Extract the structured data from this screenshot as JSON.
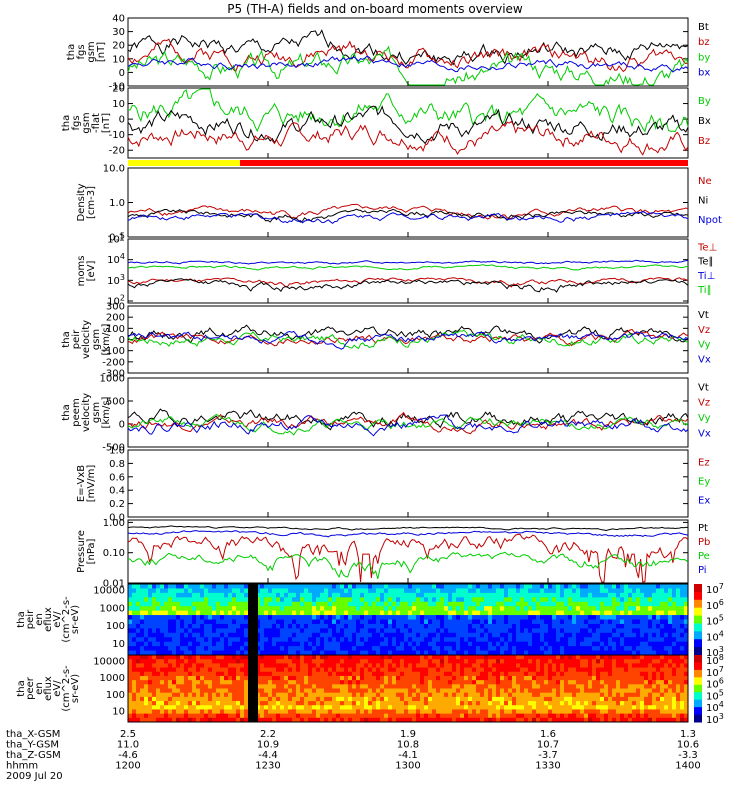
{
  "chart_data": {
    "type": "line",
    "title": "P5 (TH-A) fields and on-board moments overview",
    "colors": {
      "black": "#000000",
      "red": "#c00000",
      "green": "#00cc00",
      "blue": "#0000dd"
    },
    "panels": [
      {
        "key": "fgs_gsm",
        "ylabel": [
          "tha",
          "fgs",
          "gsm",
          "[nT]"
        ],
        "scale": "linear",
        "ylim": [
          -10,
          40
        ],
        "ticks": [
          "40",
          "30",
          "20",
          "10",
          "0",
          "-10"
        ],
        "tick_values": [
          40,
          30,
          20,
          10,
          0,
          -10
        ],
        "series": [
          {
            "name": "Bt",
            "color": "#000000",
            "base": 16,
            "amp": 7,
            "noise": 4,
            "seed": 1
          },
          {
            "name": "bz",
            "color": "#c00000",
            "base": 12,
            "amp": 6,
            "noise": 4,
            "seed": 2
          },
          {
            "name": "by",
            "color": "#00cc00",
            "base": 3,
            "amp": 5,
            "noise": 5,
            "seed": 3
          },
          {
            "name": "bx",
            "color": "#0000dd",
            "base": 6,
            "amp": 3,
            "noise": 2,
            "seed": 4
          }
        ]
      },
      {
        "key": "fgs_gsm_flat",
        "ylabel": [
          "tha",
          "fgs",
          "gsm",
          "-flat",
          "[nT]"
        ],
        "scale": "linear",
        "ylim": [
          -25,
          20
        ],
        "ticks": [
          "20",
          "10",
          "0",
          "-10",
          "-20"
        ],
        "tick_values": [
          20,
          10,
          0,
          -10,
          -20
        ],
        "series": [
          {
            "name": "By",
            "color": "#00cc00",
            "base": 2,
            "amp": 7,
            "noise": 5,
            "seed": 5
          },
          {
            "name": "Bx",
            "color": "#000000",
            "base": -4,
            "amp": 4,
            "noise": 4,
            "seed": 6
          },
          {
            "name": "Bz",
            "color": "#c00000",
            "base": -12,
            "amp": 5,
            "noise": 4,
            "seed": 7
          }
        ]
      },
      {
        "key": "density",
        "ylabel": [
          "Density",
          "[cm-3]"
        ],
        "scale": "log",
        "ylim": [
          0.1,
          10
        ],
        "ticks": [
          "10.0",
          "1.0",
          "0.1"
        ],
        "tick_values": [
          10,
          1,
          0.1
        ],
        "series": [
          {
            "name": "Ne",
            "color": "#c00000",
            "base": 0.5,
            "amp": 0.15,
            "noise": 0.08,
            "seed": 8
          },
          {
            "name": "Ni",
            "color": "#000000",
            "base": 0.42,
            "amp": 0.12,
            "noise": 0.06,
            "seed": 9
          },
          {
            "name": "Npot",
            "color": "#0000dd",
            "base": 0.35,
            "amp": 0.1,
            "noise": 0.05,
            "seed": 10
          }
        ]
      },
      {
        "key": "temperature",
        "ylabel": [
          "moms",
          "[eV]"
        ],
        "scale": "log",
        "ylim": [
          80,
          100000
        ],
        "ticks": [
          "10^5",
          "10^4",
          "10^3",
          "10^2"
        ],
        "tick_values": [
          100000,
          10000,
          1000,
          100
        ],
        "series": [
          {
            "name": "Te⊥",
            "color": "#c00000",
            "base": 800,
            "amp": 400,
            "noise": 150,
            "seed": 11
          },
          {
            "name": "Te∥",
            "color": "#000000",
            "base": 600,
            "amp": 300,
            "noise": 150,
            "seed": 12
          },
          {
            "name": "Ti⊥",
            "color": "#0000dd",
            "base": 7000,
            "amp": 1500,
            "noise": 600,
            "seed": 13
          },
          {
            "name": "Ti∥",
            "color": "#00cc00",
            "base": 4000,
            "amp": 800,
            "noise": 400,
            "seed": 14
          }
        ]
      },
      {
        "key": "peir_velocity",
        "ylabel": [
          "tha",
          "peir",
          "velocity",
          "gsm",
          "[km/s]"
        ],
        "scale": "linear",
        "ylim": [
          -300,
          300
        ],
        "ticks": [
          "300",
          "200",
          "100",
          "0",
          "-100",
          "-200",
          "-300"
        ],
        "tick_values": [
          300,
          200,
          100,
          0,
          -100,
          -200,
          -300
        ],
        "series": [
          {
            "name": "Vt",
            "color": "#000000",
            "base": 50,
            "amp": 20,
            "noise": 30,
            "seed": 15
          },
          {
            "name": "Vz",
            "color": "#c00000",
            "base": 5,
            "amp": 10,
            "noise": 25,
            "seed": 16
          },
          {
            "name": "Vy",
            "color": "#00cc00",
            "base": 0,
            "amp": 15,
            "noise": 30,
            "seed": 17
          },
          {
            "name": "Vx",
            "color": "#0000dd",
            "base": 10,
            "amp": 15,
            "noise": 25,
            "seed": 18
          }
        ]
      },
      {
        "key": "peem_velocity",
        "ylabel": [
          "tha",
          "peem",
          "velocity",
          "gsm",
          "[km/s]"
        ],
        "scale": "linear",
        "ylim": [
          -500,
          1000
        ],
        "ticks": [
          "1000",
          "500",
          "0",
          "-500"
        ],
        "tick_values": [
          1000,
          500,
          0,
          -500
        ],
        "series": [
          {
            "name": "Vt",
            "color": "#000000",
            "base": 120,
            "amp": 60,
            "noise": 90,
            "seed": 19
          },
          {
            "name": "Vz",
            "color": "#c00000",
            "base": 20,
            "amp": 30,
            "noise": 70,
            "seed": 20
          },
          {
            "name": "Vy",
            "color": "#00cc00",
            "base": 0,
            "amp": 30,
            "noise": 70,
            "seed": 21
          },
          {
            "name": "Vx",
            "color": "#0000dd",
            "base": -20,
            "amp": 40,
            "noise": 80,
            "seed": 22
          }
        ]
      },
      {
        "key": "efield",
        "ylabel": [
          "E=-VxB",
          "[mV/m]"
        ],
        "scale": "linear",
        "ylim": [
          0,
          1
        ],
        "ticks": [
          "1.0",
          "0.8",
          "0.6",
          "0.4",
          "0.2",
          "0.0"
        ],
        "tick_values": [
          1,
          0.8,
          0.6,
          0.4,
          0.2,
          0
        ],
        "series": [
          {
            "name": "Ez",
            "color": "#c00000"
          },
          {
            "name": "Ey",
            "color": "#00cc00"
          },
          {
            "name": "Ex",
            "color": "#0000dd"
          }
        ]
      },
      {
        "key": "pressure",
        "ylabel": [
          "Pressure",
          "[nPa]"
        ],
        "scale": "log",
        "ylim": [
          0.01,
          1.2
        ],
        "ticks": [
          "1.00",
          "0.10",
          "0.01"
        ],
        "tick_values": [
          1,
          0.1,
          0.01
        ],
        "series": [
          {
            "name": "Pt",
            "color": "#000000",
            "base": 0.65,
            "amp": 0.1,
            "noise": 0.03,
            "seed": 23
          },
          {
            "name": "Pb",
            "color": "#c00000",
            "base": 0.18,
            "amp": 0.2,
            "noise": 0.08,
            "seed": 24
          },
          {
            "name": "Pe",
            "color": "#00cc00",
            "base": 0.06,
            "amp": 0.03,
            "noise": 0.015,
            "seed": 25
          },
          {
            "name": "Pi",
            "color": "#0000dd",
            "base": 0.45,
            "amp": 0.08,
            "noise": 0.03,
            "seed": 26
          }
        ]
      }
    ],
    "spectra": [
      {
        "key": "peir_spectrogram",
        "ylabel": [
          "tha",
          "peir",
          "en",
          "eflux",
          "eV/",
          "(cm^2-s-",
          "sr-eV)"
        ],
        "ticks": [
          "10000",
          "1000",
          "100",
          "10"
        ],
        "tick_values": [
          10000,
          1000,
          100,
          10
        ],
        "colorbar_ticks": [
          "10^7",
          "10^6",
          "10^5",
          "10^4",
          "10^3"
        ]
      },
      {
        "key": "peer_spectrogram",
        "ylabel": [
          "tha",
          "peer",
          "en",
          "eflux",
          "eV/",
          "(cm^2-s-",
          "sr-eV)"
        ],
        "ticks": [
          "10000",
          "1000",
          "100",
          "10"
        ],
        "tick_values": [
          10000,
          1000,
          100,
          10
        ],
        "colorbar_ticks": [
          "10^8",
          "10^7",
          "10^6",
          "10^5",
          "10^4",
          "10^3"
        ]
      }
    ],
    "mode_bar": {
      "colors": [
        "#ffff00",
        "#ff0000"
      ],
      "switch_fraction": 0.2
    },
    "x_axis": {
      "rows": [
        {
          "label": "tha_X-GSM",
          "values": [
            "2.5",
            "2.2",
            "1.9",
            "1.6",
            "1.3"
          ]
        },
        {
          "label": "tha_Y-GSM",
          "values": [
            "11.0",
            "10.9",
            "10.8",
            "10.7",
            "10.6"
          ]
        },
        {
          "label": "tha_Z-GSM",
          "values": [
            "-4.6",
            "-4.4",
            "-4.1",
            "-3.7",
            "-3.3"
          ]
        },
        {
          "label": "hhmm",
          "values": [
            "1200",
            "1230",
            "1300",
            "1330",
            "1400"
          ]
        }
      ],
      "date": "2009 Jul 20"
    }
  }
}
